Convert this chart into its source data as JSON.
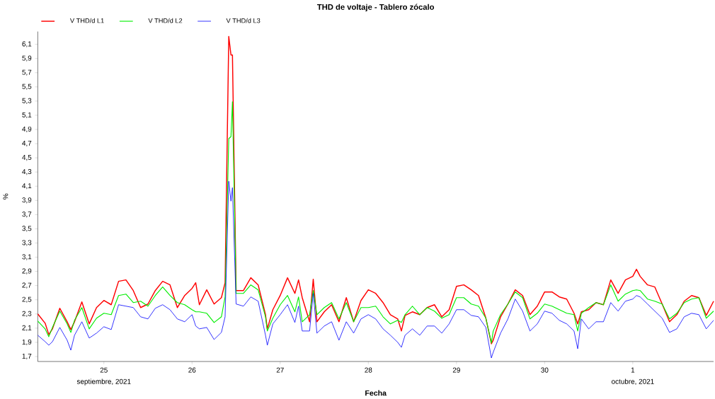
{
  "chart_data": {
    "type": "line",
    "title": "THD de voltaje - Tablero zócalo",
    "xlabel": "Fecha",
    "ylabel": "%",
    "legend": "top left",
    "grid": false,
    "line_style": "solid",
    "annotations": [
      "septiembre, 2021",
      "octubre, 2021"
    ],
    "xlim": [
      "2021-09-24T06:00",
      "2021-10-01T22:00"
    ],
    "xticks": [
      {
        "value": "2021-09-25",
        "label": "25"
      },
      {
        "value": "2021-09-26",
        "label": "26"
      },
      {
        "value": "2021-09-27",
        "label": "27"
      },
      {
        "value": "2021-09-28",
        "label": "28"
      },
      {
        "value": "2021-09-29",
        "label": "29"
      },
      {
        "value": "2021-09-30",
        "label": "30"
      },
      {
        "value": "2021-10-01",
        "label": "1"
      }
    ],
    "ylim": [
      1.63,
      6.28
    ],
    "yticks": [
      {
        "value": 1.7,
        "label": "1,7"
      },
      {
        "value": 1.9,
        "label": "1,9"
      },
      {
        "value": 2.1,
        "label": "2,1"
      },
      {
        "value": 2.3,
        "label": "2,3"
      },
      {
        "value": 2.5,
        "label": "2,5"
      },
      {
        "value": 2.7,
        "label": "2,7"
      },
      {
        "value": 2.9,
        "label": "2,9"
      },
      {
        "value": 3.1,
        "label": "3,1"
      },
      {
        "value": 3.3,
        "label": "3,3"
      },
      {
        "value": 3.5,
        "label": "3,5"
      },
      {
        "value": 3.7,
        "label": "3,7"
      },
      {
        "value": 3.9,
        "label": "3,9"
      },
      {
        "value": 4.1,
        "label": "4,1"
      },
      {
        "value": 4.3,
        "label": "4,3"
      },
      {
        "value": 4.5,
        "label": "4,5"
      },
      {
        "value": 4.7,
        "label": "4,7"
      },
      {
        "value": 4.9,
        "label": "4,9"
      },
      {
        "value": 5.1,
        "label": "5,1"
      },
      {
        "value": 5.3,
        "label": "5,3"
      },
      {
        "value": 5.5,
        "label": "5,5"
      },
      {
        "value": 5.7,
        "label": "5,7"
      },
      {
        "value": 5.9,
        "label": "5,9"
      },
      {
        "value": 6.1,
        "label": "6,1"
      }
    ],
    "x": [
      "2021-09-24T06:00",
      "2021-09-24T08:00",
      "2021-09-24T09:00",
      "2021-09-24T10:00",
      "2021-09-24T12:00",
      "2021-09-24T14:00",
      "2021-09-24T15:00",
      "2021-09-24T16:00",
      "2021-09-24T18:00",
      "2021-09-24T20:00",
      "2021-09-24T22:00",
      "2021-09-25T00:00",
      "2021-09-25T02:00",
      "2021-09-25T04:00",
      "2021-09-25T06:00",
      "2021-09-25T08:00",
      "2021-09-25T10:00",
      "2021-09-25T12:00",
      "2021-09-25T14:00",
      "2021-09-25T16:00",
      "2021-09-25T18:00",
      "2021-09-25T20:00",
      "2021-09-25T22:00",
      "2021-09-26T00:00",
      "2021-09-26T01:00",
      "2021-09-26T02:00",
      "2021-09-26T04:00",
      "2021-09-26T06:00",
      "2021-09-26T08:00",
      "2021-09-26T09:00",
      "2021-09-26T10:00",
      "2021-09-26T10:36",
      "2021-09-26T11:00",
      "2021-09-26T12:00",
      "2021-09-26T14:00",
      "2021-09-26T16:00",
      "2021-09-26T18:00",
      "2021-09-26T20:00",
      "2021-09-26T20:30",
      "2021-09-26T22:00",
      "2021-09-27T00:00",
      "2021-09-27T02:00",
      "2021-09-27T04:00",
      "2021-09-27T05:00",
      "2021-09-27T06:00",
      "2021-09-27T08:00",
      "2021-09-27T09:00",
      "2021-09-27T10:00",
      "2021-09-27T12:00",
      "2021-09-27T14:00",
      "2021-09-27T16:00",
      "2021-09-27T18:00",
      "2021-09-27T20:00",
      "2021-09-27T22:00",
      "2021-09-28T00:00",
      "2021-09-28T02:00",
      "2021-09-28T04:00",
      "2021-09-28T06:00",
      "2021-09-28T08:00",
      "2021-09-28T09:00",
      "2021-09-28T10:00",
      "2021-09-28T12:00",
      "2021-09-28T14:00",
      "2021-09-28T16:00",
      "2021-09-28T18:00",
      "2021-09-28T20:00",
      "2021-09-28T22:00",
      "2021-09-29T00:00",
      "2021-09-29T02:00",
      "2021-09-29T04:00",
      "2021-09-29T06:00",
      "2021-09-29T08:00",
      "2021-09-29T09:30",
      "2021-09-29T10:00",
      "2021-09-29T12:00",
      "2021-09-29T14:00",
      "2021-09-29T16:00",
      "2021-09-29T18:00",
      "2021-09-29T20:00",
      "2021-09-29T22:00",
      "2021-09-30T00:00",
      "2021-09-30T02:00",
      "2021-09-30T04:00",
      "2021-09-30T06:00",
      "2021-09-30T08:00",
      "2021-09-30T09:00",
      "2021-09-30T10:00",
      "2021-09-30T12:00",
      "2021-09-30T14:00",
      "2021-09-30T16:00",
      "2021-09-30T18:00",
      "2021-09-30T20:00",
      "2021-09-30T22:00",
      "2021-10-01T00:00",
      "2021-10-01T01:00",
      "2021-10-01T02:00",
      "2021-10-01T04:00",
      "2021-10-01T06:00",
      "2021-10-01T08:00",
      "2021-10-01T10:00",
      "2021-10-01T12:00",
      "2021-10-01T14:00",
      "2021-10-01T16:00",
      "2021-10-01T18:00",
      "2021-10-01T20:00",
      "2021-10-01T22:00"
    ],
    "series": [
      {
        "name": "V THD/d L1",
        "color": "#ff0000",
        "values": [
          2.3,
          2.17,
          2.01,
          2.09,
          2.38,
          2.19,
          2.08,
          2.19,
          2.47,
          2.16,
          2.39,
          2.49,
          2.43,
          2.76,
          2.78,
          2.63,
          2.39,
          2.44,
          2.63,
          2.76,
          2.71,
          2.39,
          2.56,
          2.66,
          2.74,
          2.43,
          2.64,
          2.44,
          2.53,
          2.74,
          6.21,
          5.95,
          5.95,
          2.63,
          2.63,
          2.81,
          2.71,
          2.29,
          2.09,
          2.36,
          2.56,
          2.81,
          2.59,
          2.78,
          2.53,
          2.19,
          2.79,
          2.19,
          2.33,
          2.43,
          2.19,
          2.53,
          2.19,
          2.49,
          2.64,
          2.59,
          2.46,
          2.29,
          2.23,
          2.06,
          2.28,
          2.33,
          2.29,
          2.39,
          2.43,
          2.26,
          2.36,
          2.69,
          2.71,
          2.64,
          2.56,
          2.24,
          1.88,
          1.93,
          2.26,
          2.44,
          2.64,
          2.56,
          2.29,
          2.41,
          2.61,
          2.61,
          2.54,
          2.51,
          2.31,
          2.16,
          2.33,
          2.36,
          2.46,
          2.43,
          2.78,
          2.59,
          2.78,
          2.83,
          2.93,
          2.83,
          2.71,
          2.68,
          2.44,
          2.19,
          2.29,
          2.48,
          2.56,
          2.53,
          2.28,
          2.48
        ]
      },
      {
        "name": "V THD/d L2",
        "color": "#00ee00",
        "values": [
          2.2,
          2.09,
          1.98,
          2.11,
          2.34,
          2.16,
          2.04,
          2.21,
          2.39,
          2.09,
          2.24,
          2.31,
          2.29,
          2.56,
          2.58,
          2.46,
          2.48,
          2.41,
          2.56,
          2.68,
          2.56,
          2.46,
          2.43,
          2.36,
          2.33,
          2.33,
          2.31,
          2.18,
          2.26,
          2.54,
          4.77,
          4.8,
          5.29,
          2.59,
          2.59,
          2.71,
          2.64,
          2.26,
          2.06,
          2.24,
          2.43,
          2.56,
          2.33,
          2.54,
          2.19,
          2.29,
          2.63,
          2.29,
          2.39,
          2.46,
          2.23,
          2.46,
          2.19,
          2.39,
          2.39,
          2.41,
          2.26,
          2.16,
          2.21,
          2.18,
          2.29,
          2.41,
          2.29,
          2.39,
          2.34,
          2.24,
          2.29,
          2.53,
          2.53,
          2.44,
          2.41,
          2.24,
          1.89,
          2.06,
          2.29,
          2.44,
          2.61,
          2.53,
          2.23,
          2.31,
          2.44,
          2.41,
          2.36,
          2.31,
          2.29,
          2.06,
          2.31,
          2.39,
          2.46,
          2.43,
          2.71,
          2.48,
          2.58,
          2.63,
          2.64,
          2.63,
          2.51,
          2.48,
          2.44,
          2.23,
          2.31,
          2.46,
          2.51,
          2.53,
          2.24,
          2.34
        ]
      },
      {
        "name": "V THD/d L3",
        "color": "#0000ff",
        "values": [
          2.0,
          1.91,
          1.86,
          1.91,
          2.11,
          1.93,
          1.79,
          2.0,
          2.19,
          1.96,
          2.03,
          2.12,
          2.08,
          2.43,
          2.41,
          2.39,
          2.26,
          2.23,
          2.38,
          2.43,
          2.36,
          2.23,
          2.19,
          2.29,
          2.13,
          2.09,
          2.11,
          1.94,
          2.04,
          2.26,
          4.17,
          3.89,
          4.08,
          2.44,
          2.41,
          2.54,
          2.48,
          2.0,
          1.86,
          2.16,
          2.29,
          2.43,
          2.18,
          2.41,
          2.06,
          2.06,
          2.59,
          2.03,
          2.13,
          2.19,
          1.93,
          2.19,
          2.03,
          2.23,
          2.29,
          2.23,
          2.09,
          2.0,
          1.9,
          1.83,
          2.0,
          2.09,
          2.0,
          2.13,
          2.13,
          2.03,
          2.16,
          2.36,
          2.36,
          2.28,
          2.26,
          2.11,
          1.68,
          1.76,
          2.03,
          2.23,
          2.51,
          2.34,
          2.06,
          2.16,
          2.34,
          2.31,
          2.21,
          2.16,
          2.06,
          1.81,
          2.23,
          2.09,
          2.19,
          2.19,
          2.46,
          2.34,
          2.48,
          2.51,
          2.56,
          2.54,
          2.44,
          2.34,
          2.24,
          2.04,
          2.09,
          2.26,
          2.31,
          2.29,
          2.09,
          2.21
        ]
      }
    ]
  }
}
